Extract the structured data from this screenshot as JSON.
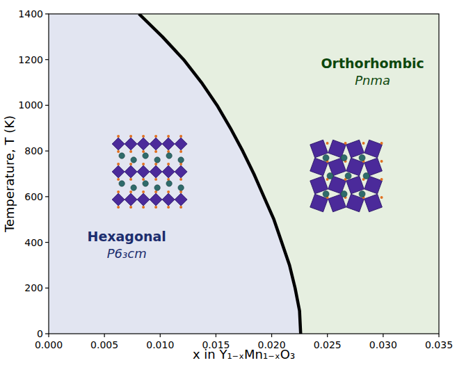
{
  "chart_data": {
    "type": "line",
    "x_label": "x in Y₁₋ₓMn₁₋ₓO₃",
    "y_label": "Temperature, T (K)",
    "x": [
      0.0226,
      0.0225,
      0.0221,
      0.0216,
      0.0209,
      0.0202,
      0.0193,
      0.0184,
      0.0174,
      0.0163,
      0.0151,
      0.0137,
      0.0121,
      0.0102,
      0.0081
    ],
    "series": [
      {
        "color": "#000000",
        "line_style": "solid",
        "values": [
          0,
          100,
          200,
          300,
          400,
          500,
          600,
          700,
          800,
          900,
          1000,
          1100,
          1200,
          1300,
          1400
        ]
      }
    ],
    "xlim": [
      0,
      0.035
    ],
    "ylim": [
      0,
      1400
    ],
    "xticks": [
      {
        "value": 0,
        "label": "0.000"
      },
      {
        "value": 0.005,
        "label": "0.005"
      },
      {
        "value": 0.01,
        "label": "0.010"
      },
      {
        "value": 0.015,
        "label": "0.015"
      },
      {
        "value": 0.02,
        "label": "0.020"
      },
      {
        "value": 0.025,
        "label": "0.025"
      },
      {
        "value": 0.03,
        "label": "0.030"
      },
      {
        "value": 0.035,
        "label": "0.035"
      }
    ],
    "yticks": [
      0,
      200,
      400,
      600,
      800,
      1000,
      1200,
      1400
    ],
    "grid": false,
    "regions": [
      {
        "label": "Hexagonal",
        "space_group": "P6₃cm",
        "color": "#e2e5f1",
        "text_color": "#1c2d6e",
        "side": "left"
      },
      {
        "label": "Orthorhombic",
        "space_group": "Pnma",
        "color": "#e6efe0",
        "text_color": "#0d470d",
        "side": "right"
      }
    ]
  }
}
